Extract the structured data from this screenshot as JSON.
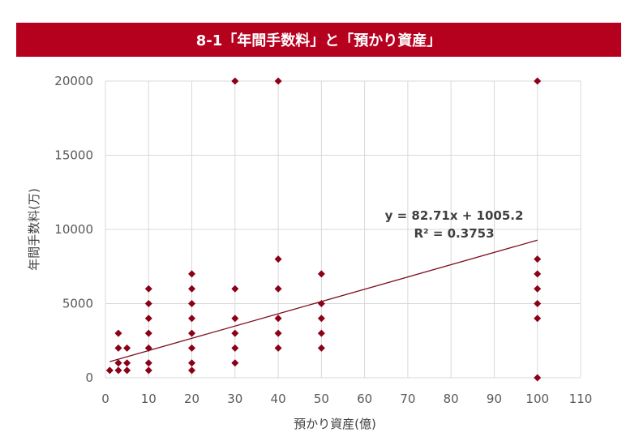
{
  "chart_data": {
    "type": "scatter",
    "title": "8-1「年間手数料」と「預かり資産」",
    "xlabel": "預かり資産(億)",
    "ylabel": "年間手数料(万)",
    "xlim": [
      0,
      110
    ],
    "ylim": [
      0,
      20000
    ],
    "x_ticks": [
      0,
      10,
      20,
      30,
      40,
      50,
      60,
      70,
      80,
      90,
      100,
      110
    ],
    "y_ticks": [
      0,
      5000,
      10000,
      15000,
      20000
    ],
    "grid": true,
    "marker_color": "#8b0016",
    "trendline_color": "#7b0d1e",
    "points": [
      [
        1,
        500
      ],
      [
        3,
        500
      ],
      [
        3,
        1000
      ],
      [
        3,
        2000
      ],
      [
        3,
        3000
      ],
      [
        5,
        500
      ],
      [
        5,
        1000
      ],
      [
        5,
        2000
      ],
      [
        10,
        500
      ],
      [
        10,
        1000
      ],
      [
        10,
        2000
      ],
      [
        10,
        3000
      ],
      [
        10,
        4000
      ],
      [
        10,
        5000
      ],
      [
        10,
        6000
      ],
      [
        20,
        500
      ],
      [
        20,
        1000
      ],
      [
        20,
        2000
      ],
      [
        20,
        3000
      ],
      [
        20,
        4000
      ],
      [
        20,
        5000
      ],
      [
        20,
        6000
      ],
      [
        20,
        7000
      ],
      [
        30,
        1000
      ],
      [
        30,
        2000
      ],
      [
        30,
        3000
      ],
      [
        30,
        4000
      ],
      [
        30,
        6000
      ],
      [
        30,
        20000
      ],
      [
        40,
        2000
      ],
      [
        40,
        3000
      ],
      [
        40,
        4000
      ],
      [
        40,
        6000
      ],
      [
        40,
        8000
      ],
      [
        40,
        20000
      ],
      [
        50,
        2000
      ],
      [
        50,
        3000
      ],
      [
        50,
        4000
      ],
      [
        50,
        5000
      ],
      [
        50,
        7000
      ],
      [
        100,
        0
      ],
      [
        100,
        4000
      ],
      [
        100,
        5000
      ],
      [
        100,
        6000
      ],
      [
        100,
        7000
      ],
      [
        100,
        8000
      ],
      [
        100,
        20000
      ]
    ],
    "trendline": {
      "slope": 82.71,
      "intercept": 1005.2,
      "x_range": [
        1,
        100
      ],
      "equation": "y = 82.71x + 1005.2",
      "r_squared": "R² = 0.3753"
    }
  }
}
